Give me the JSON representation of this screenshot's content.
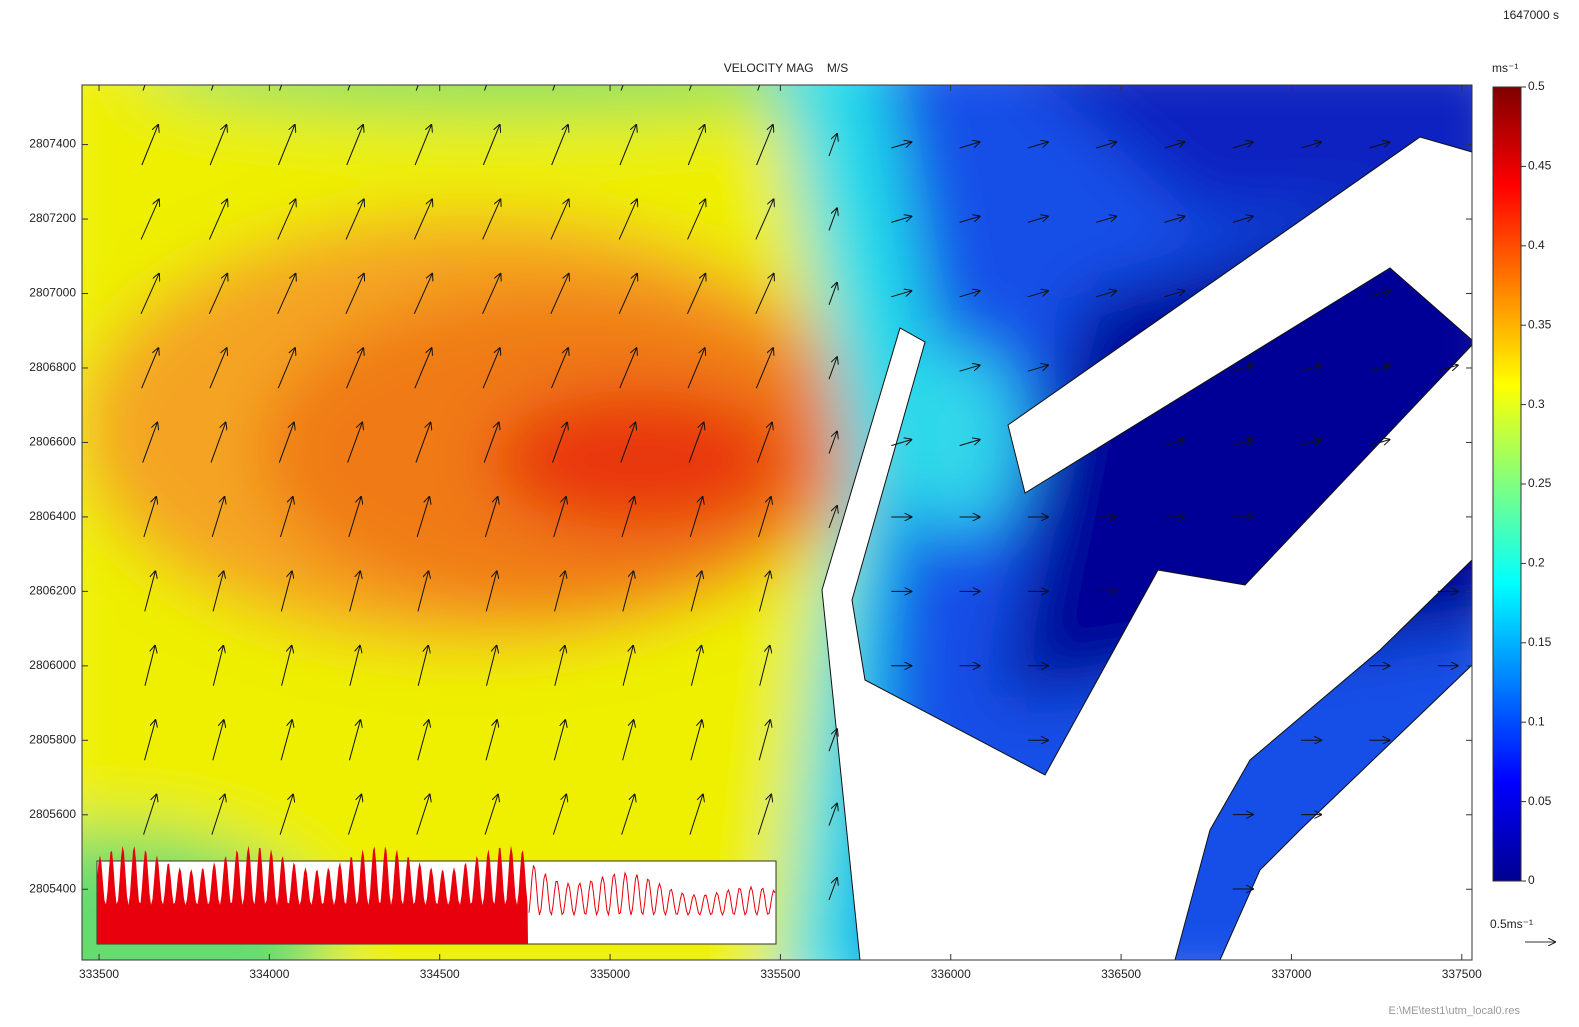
{
  "chart_data": {
    "type": "contour",
    "title": "VELOCITY MAG    M/S",
    "time_label": "1647000 s",
    "source": "E:\\ME\\test1\\utm_local0.res",
    "xlim": [
      333450,
      337530
    ],
    "xticks": [
      333500,
      334000,
      334500,
      335000,
      335500,
      336000,
      336500,
      337000,
      337500
    ],
    "ylim": [
      2805210,
      2807560
    ],
    "yticks": [
      2805400,
      2805600,
      2805800,
      2806000,
      2806200,
      2806400,
      2806600,
      2806800,
      2807000,
      2807200,
      2807400
    ],
    "colorbar": {
      "unit": "ms⁻¹",
      "lim": [
        0,
        0.5
      ],
      "ticks": [
        0,
        0.05,
        0.1,
        0.15,
        0.2,
        0.25,
        0.3,
        0.35,
        0.4,
        0.45,
        0.5
      ]
    },
    "vector_scale": {
      "label": "0.5ms⁻¹",
      "value": 0.5
    }
  }
}
